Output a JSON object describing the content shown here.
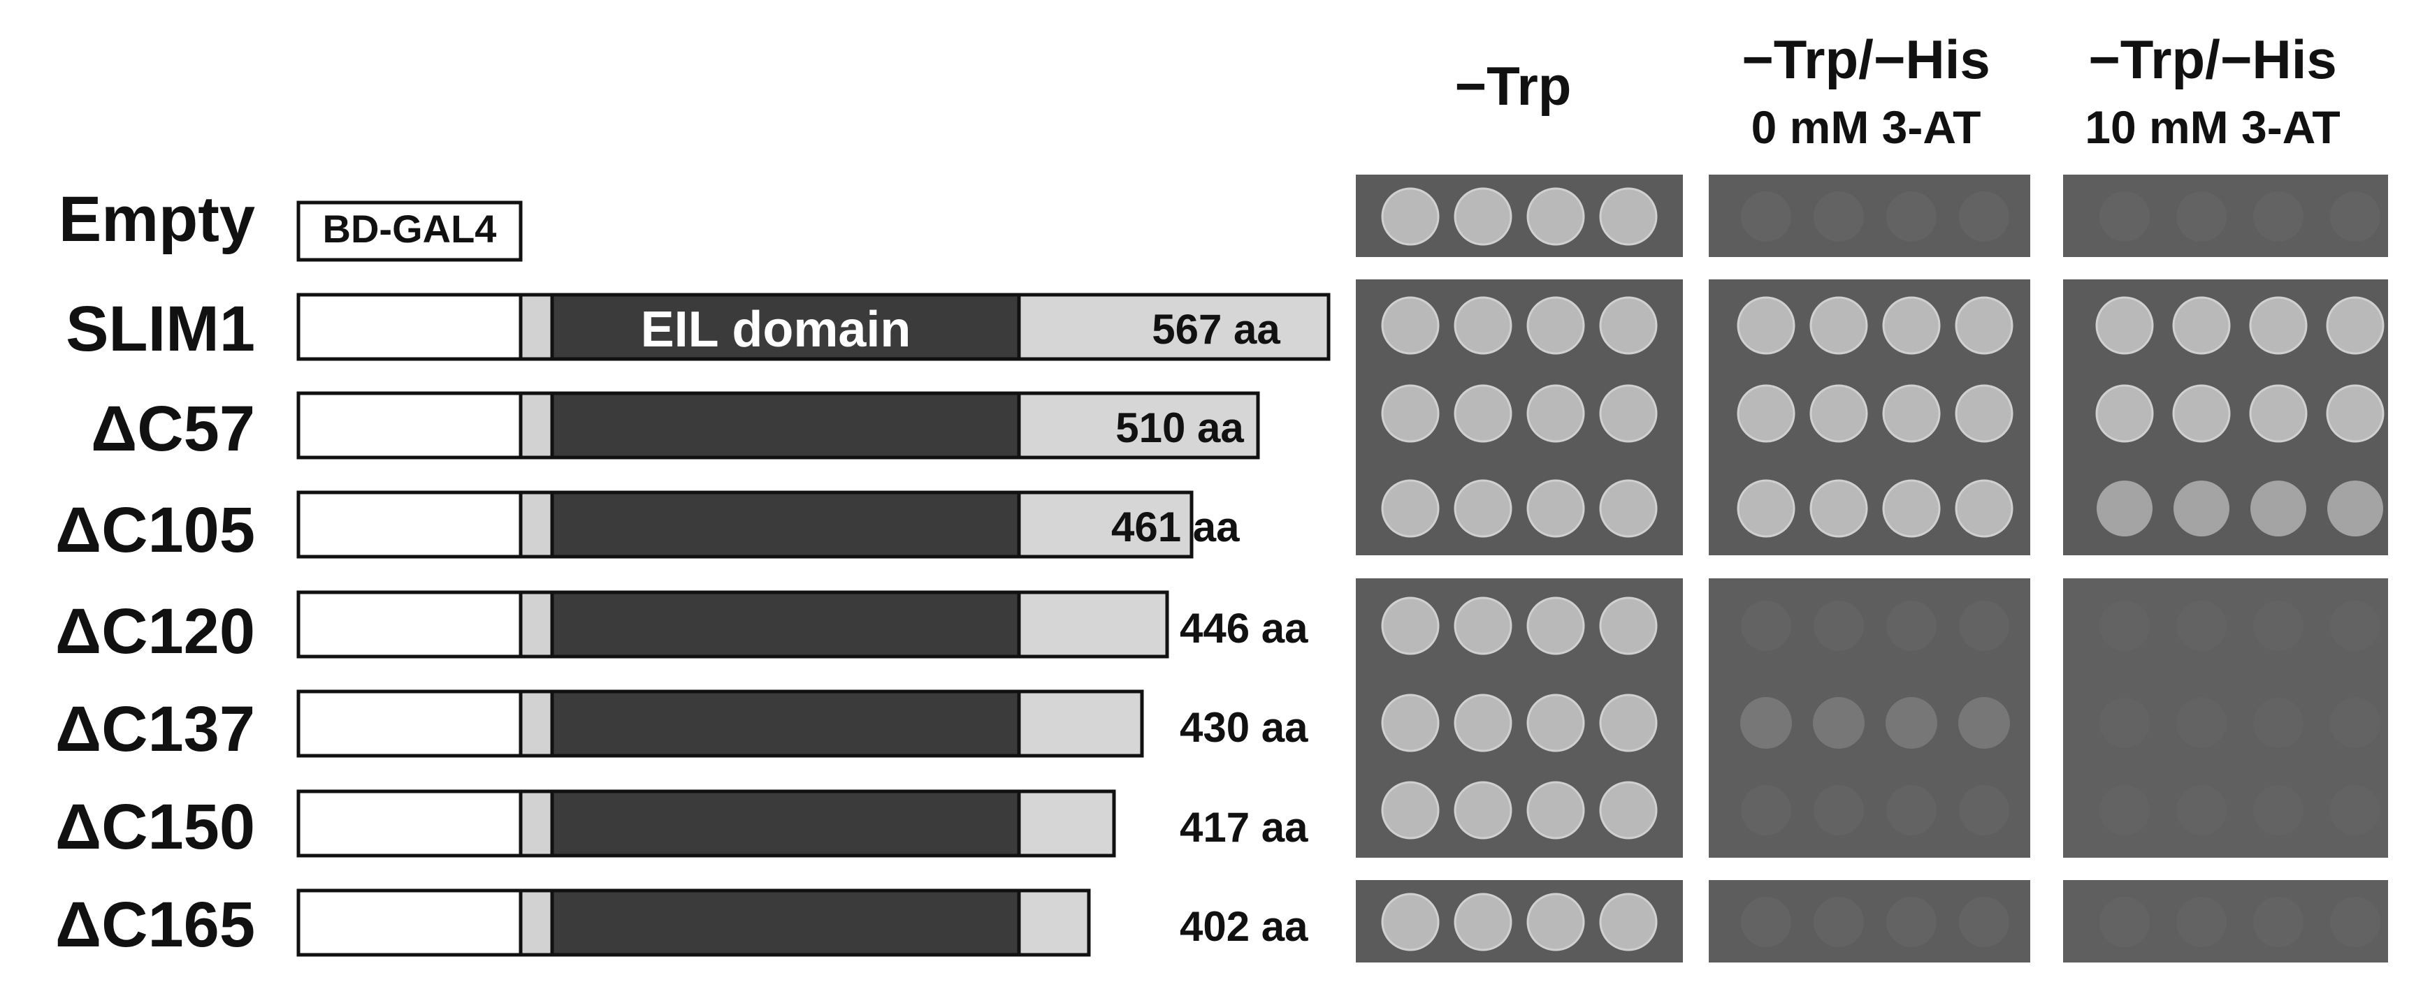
{
  "conditions": [
    {
      "line1": "−Trp",
      "line2": ""
    },
    {
      "line1": "−Trp/−His",
      "line2": "0 mM 3-AT"
    },
    {
      "line1": "−Trp/−His",
      "line2": "10 mM 3-AT"
    }
  ],
  "constructs": [
    {
      "name": "Empty",
      "bd_label": "BD-GAL4",
      "length": "",
      "unit": "",
      "growth": [
        "strong",
        "none",
        "none"
      ]
    },
    {
      "name": "SLIM1",
      "domain_label": "EIL domain",
      "length": "567",
      "unit": "aa",
      "growth": [
        "strong",
        "strong",
        "strong"
      ]
    },
    {
      "name": "ΔC57",
      "length": "510",
      "unit": "aa",
      "growth": [
        "strong",
        "strong",
        "strong"
      ]
    },
    {
      "name": "ΔC105",
      "length": "461",
      "unit": "aa",
      "growth": [
        "strong",
        "strong",
        "medium"
      ]
    },
    {
      "name": "ΔC120",
      "length": "446",
      "unit": "aa",
      "growth": [
        "strong",
        "none",
        "none"
      ]
    },
    {
      "name": "ΔC137",
      "length": "430",
      "unit": "aa",
      "growth": [
        "strong",
        "weak",
        "none"
      ]
    },
    {
      "name": "ΔC150",
      "length": "417",
      "unit": "aa",
      "growth": [
        "strong",
        "none",
        "none"
      ]
    },
    {
      "name": "ΔC165",
      "length": "402",
      "unit": "aa",
      "growth": [
        "strong",
        "none",
        "none"
      ]
    }
  ],
  "colors": {
    "bd_region": "#ffffff",
    "linker": "#d2d2d2",
    "eil_domain": "#3b3b3b",
    "c_terminal": "#d6d6d6",
    "plate_panel": "#5a5a5a",
    "colony_strong": "#b9b9b9",
    "colony_medium": "#a4a4a4",
    "colony_weak": "#777777",
    "colony_none": "#636363"
  }
}
